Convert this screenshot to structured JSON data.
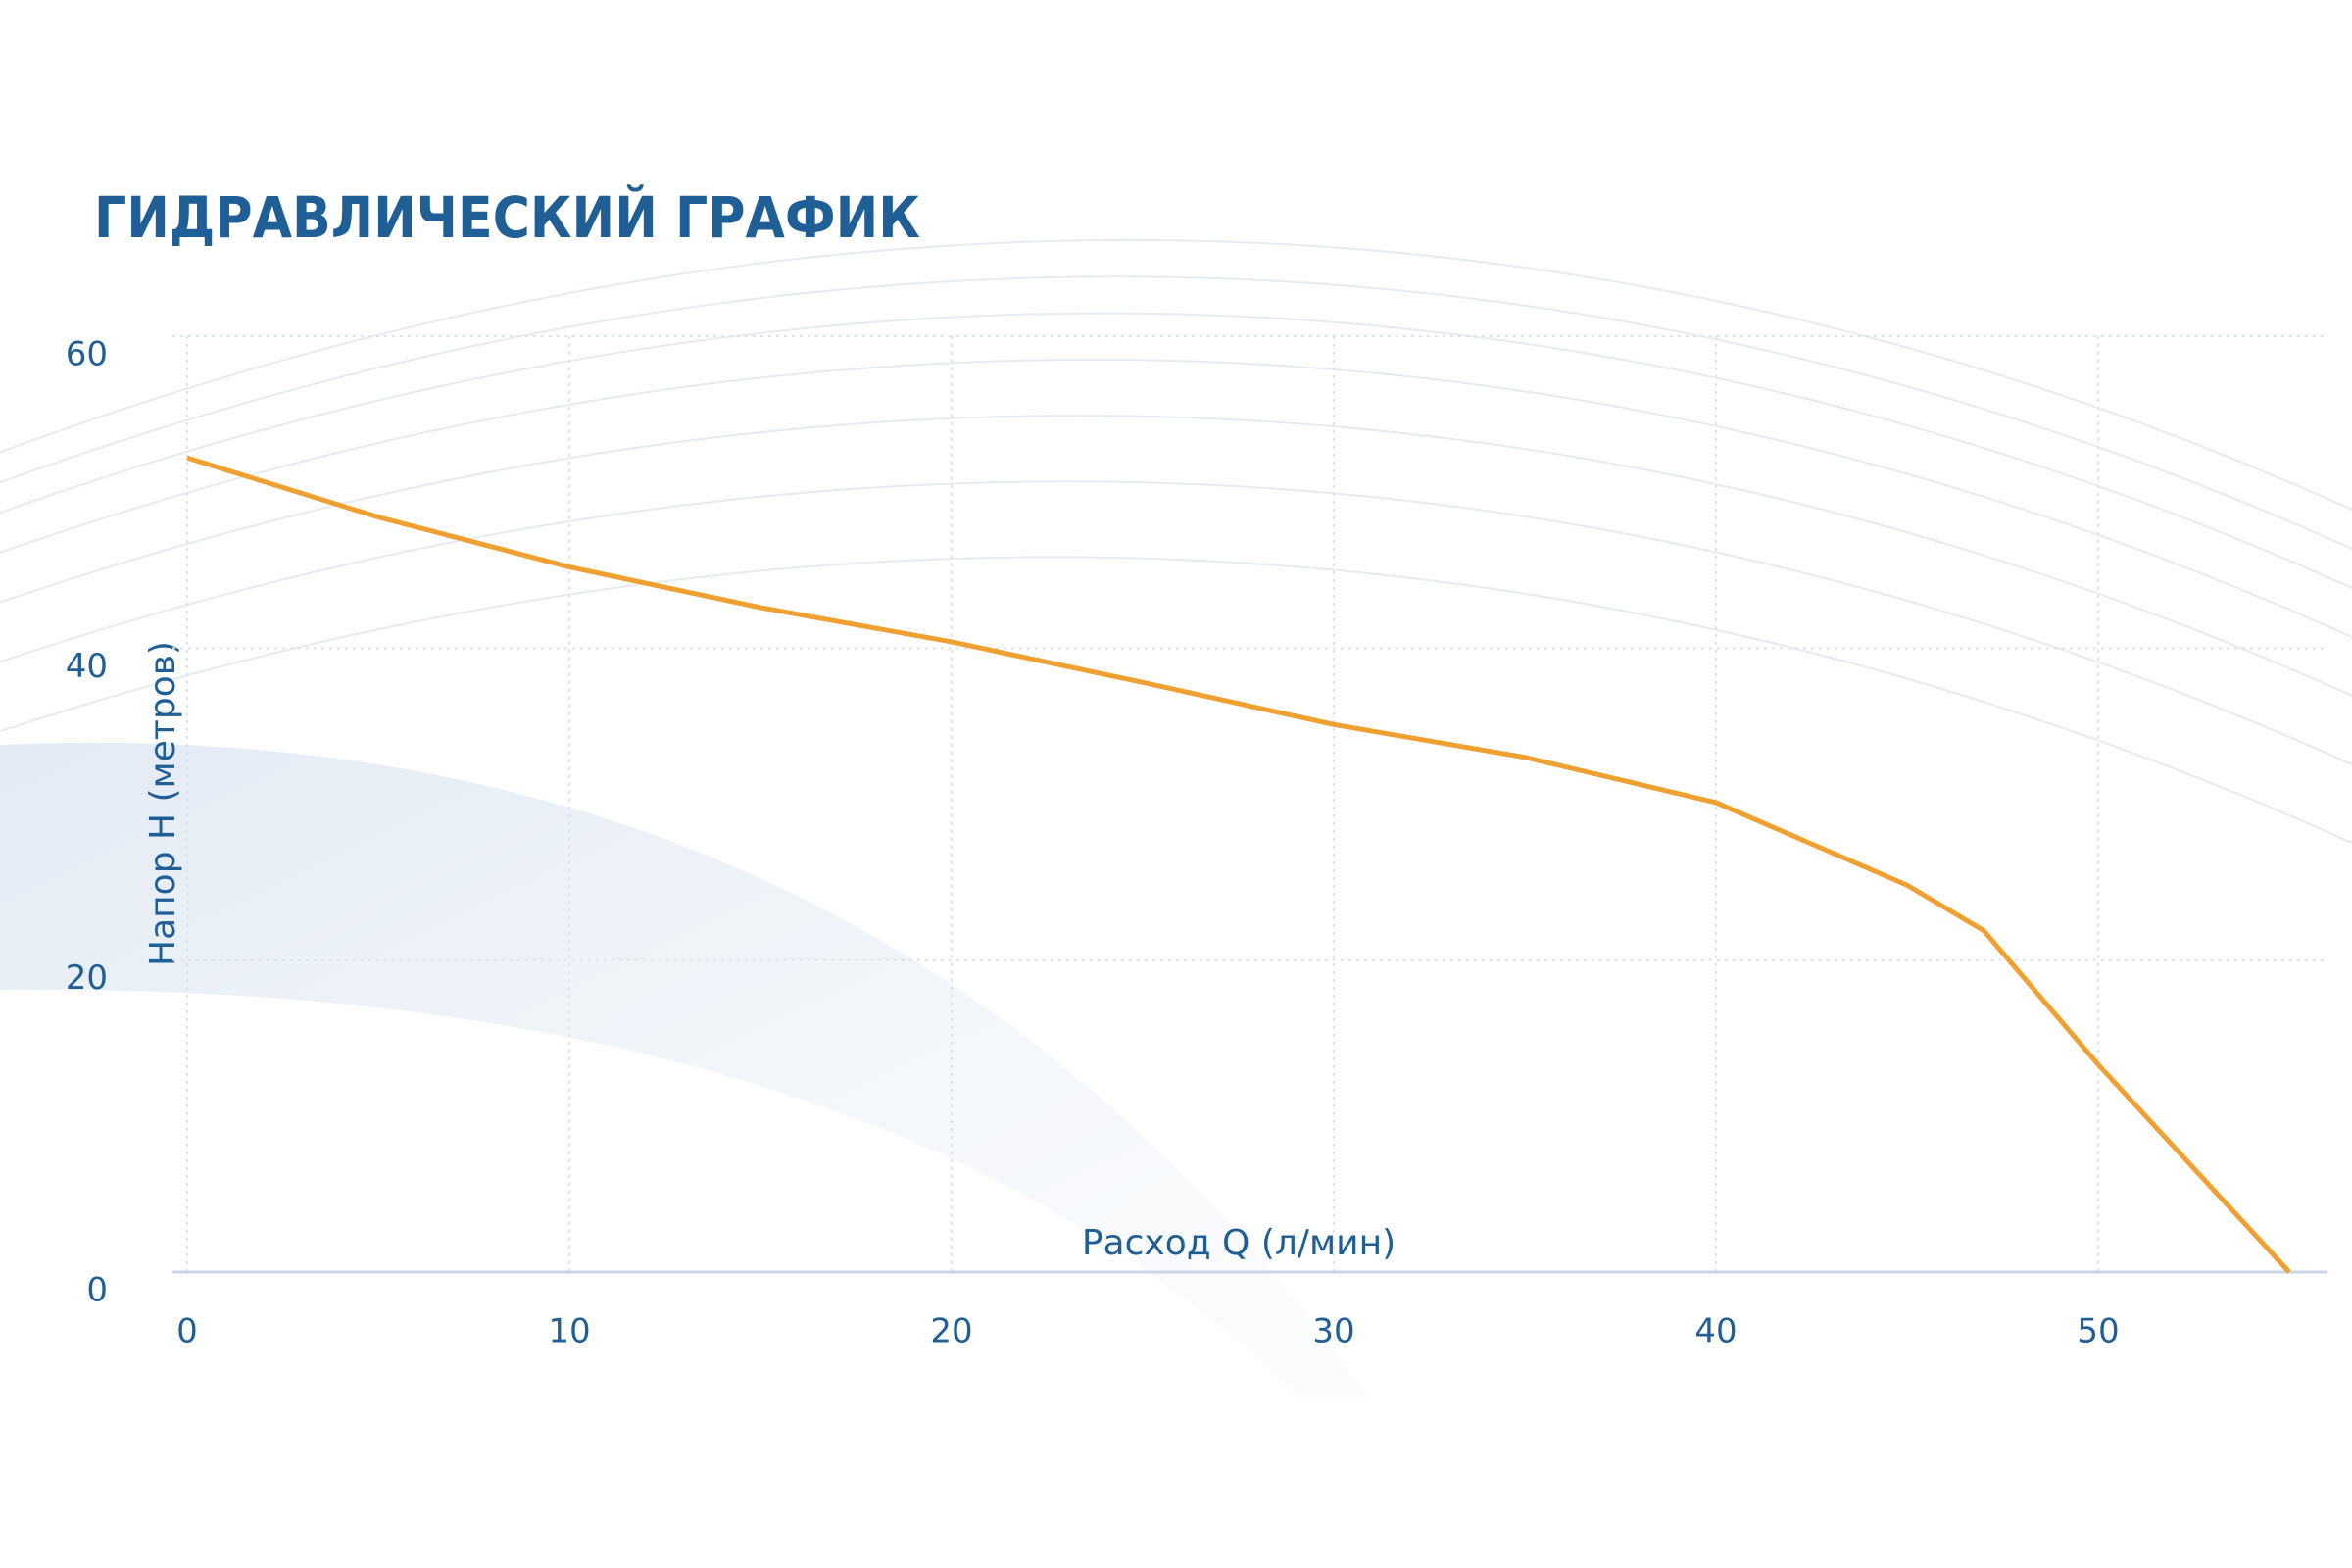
{
  "chart_data": {
    "type": "line",
    "title": "ГИДРАВЛИЧЕСКИЙ ГРАФИК",
    "x_label": "Расход Q (л/мин)",
    "y_label": "Напор Н (метров)",
    "x": [
      0,
      5,
      10,
      15,
      20,
      25,
      30,
      35,
      40,
      45,
      47,
      50,
      55
    ],
    "series": [
      {
        "color": "#f0a030",
        "values": [
          52.2,
          48.4,
          45.2,
          42.6,
          40.4,
          37.8,
          35.1,
          33,
          30.1,
          24.8,
          21.9,
          13.3,
          0
        ]
      }
    ],
    "xlim": [
      0,
      56
    ],
    "xticks": [
      0,
      10,
      20,
      30,
      40,
      50
    ],
    "ylim": [
      0,
      60
    ],
    "yticks": [
      0,
      20,
      40,
      60
    ],
    "grid": true
  }
}
